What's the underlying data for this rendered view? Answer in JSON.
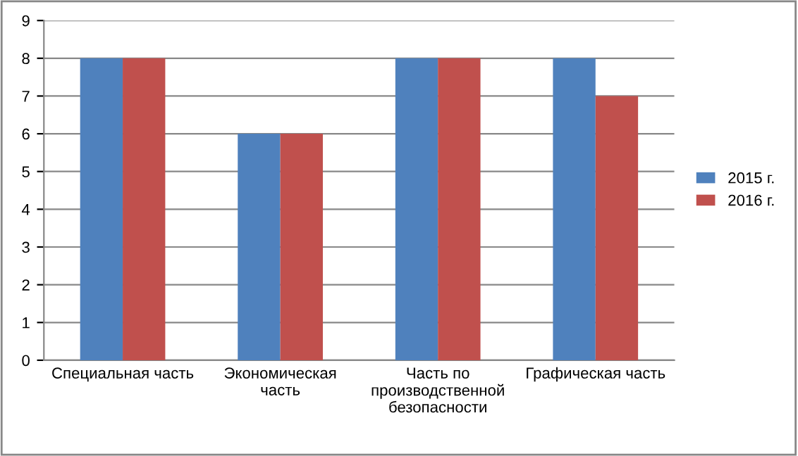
{
  "chart_data": {
    "type": "bar",
    "categories": [
      "Специальная часть",
      "Экономическая\nчасть",
      "Часть по\nпроизводственной\nбезопасности",
      "Графическая часть"
    ],
    "series": [
      {
        "name": "2015 г.",
        "color": "#4f81bd",
        "values": [
          8,
          6,
          8,
          8
        ]
      },
      {
        "name": "2016 г.",
        "color": "#c0504d",
        "values": [
          8,
          6,
          8,
          7
        ]
      }
    ],
    "ylim": [
      0,
      9
    ],
    "yticks": [
      0,
      1,
      2,
      3,
      4,
      5,
      6,
      7,
      8,
      9
    ],
    "grid": "y",
    "legend": "right"
  }
}
